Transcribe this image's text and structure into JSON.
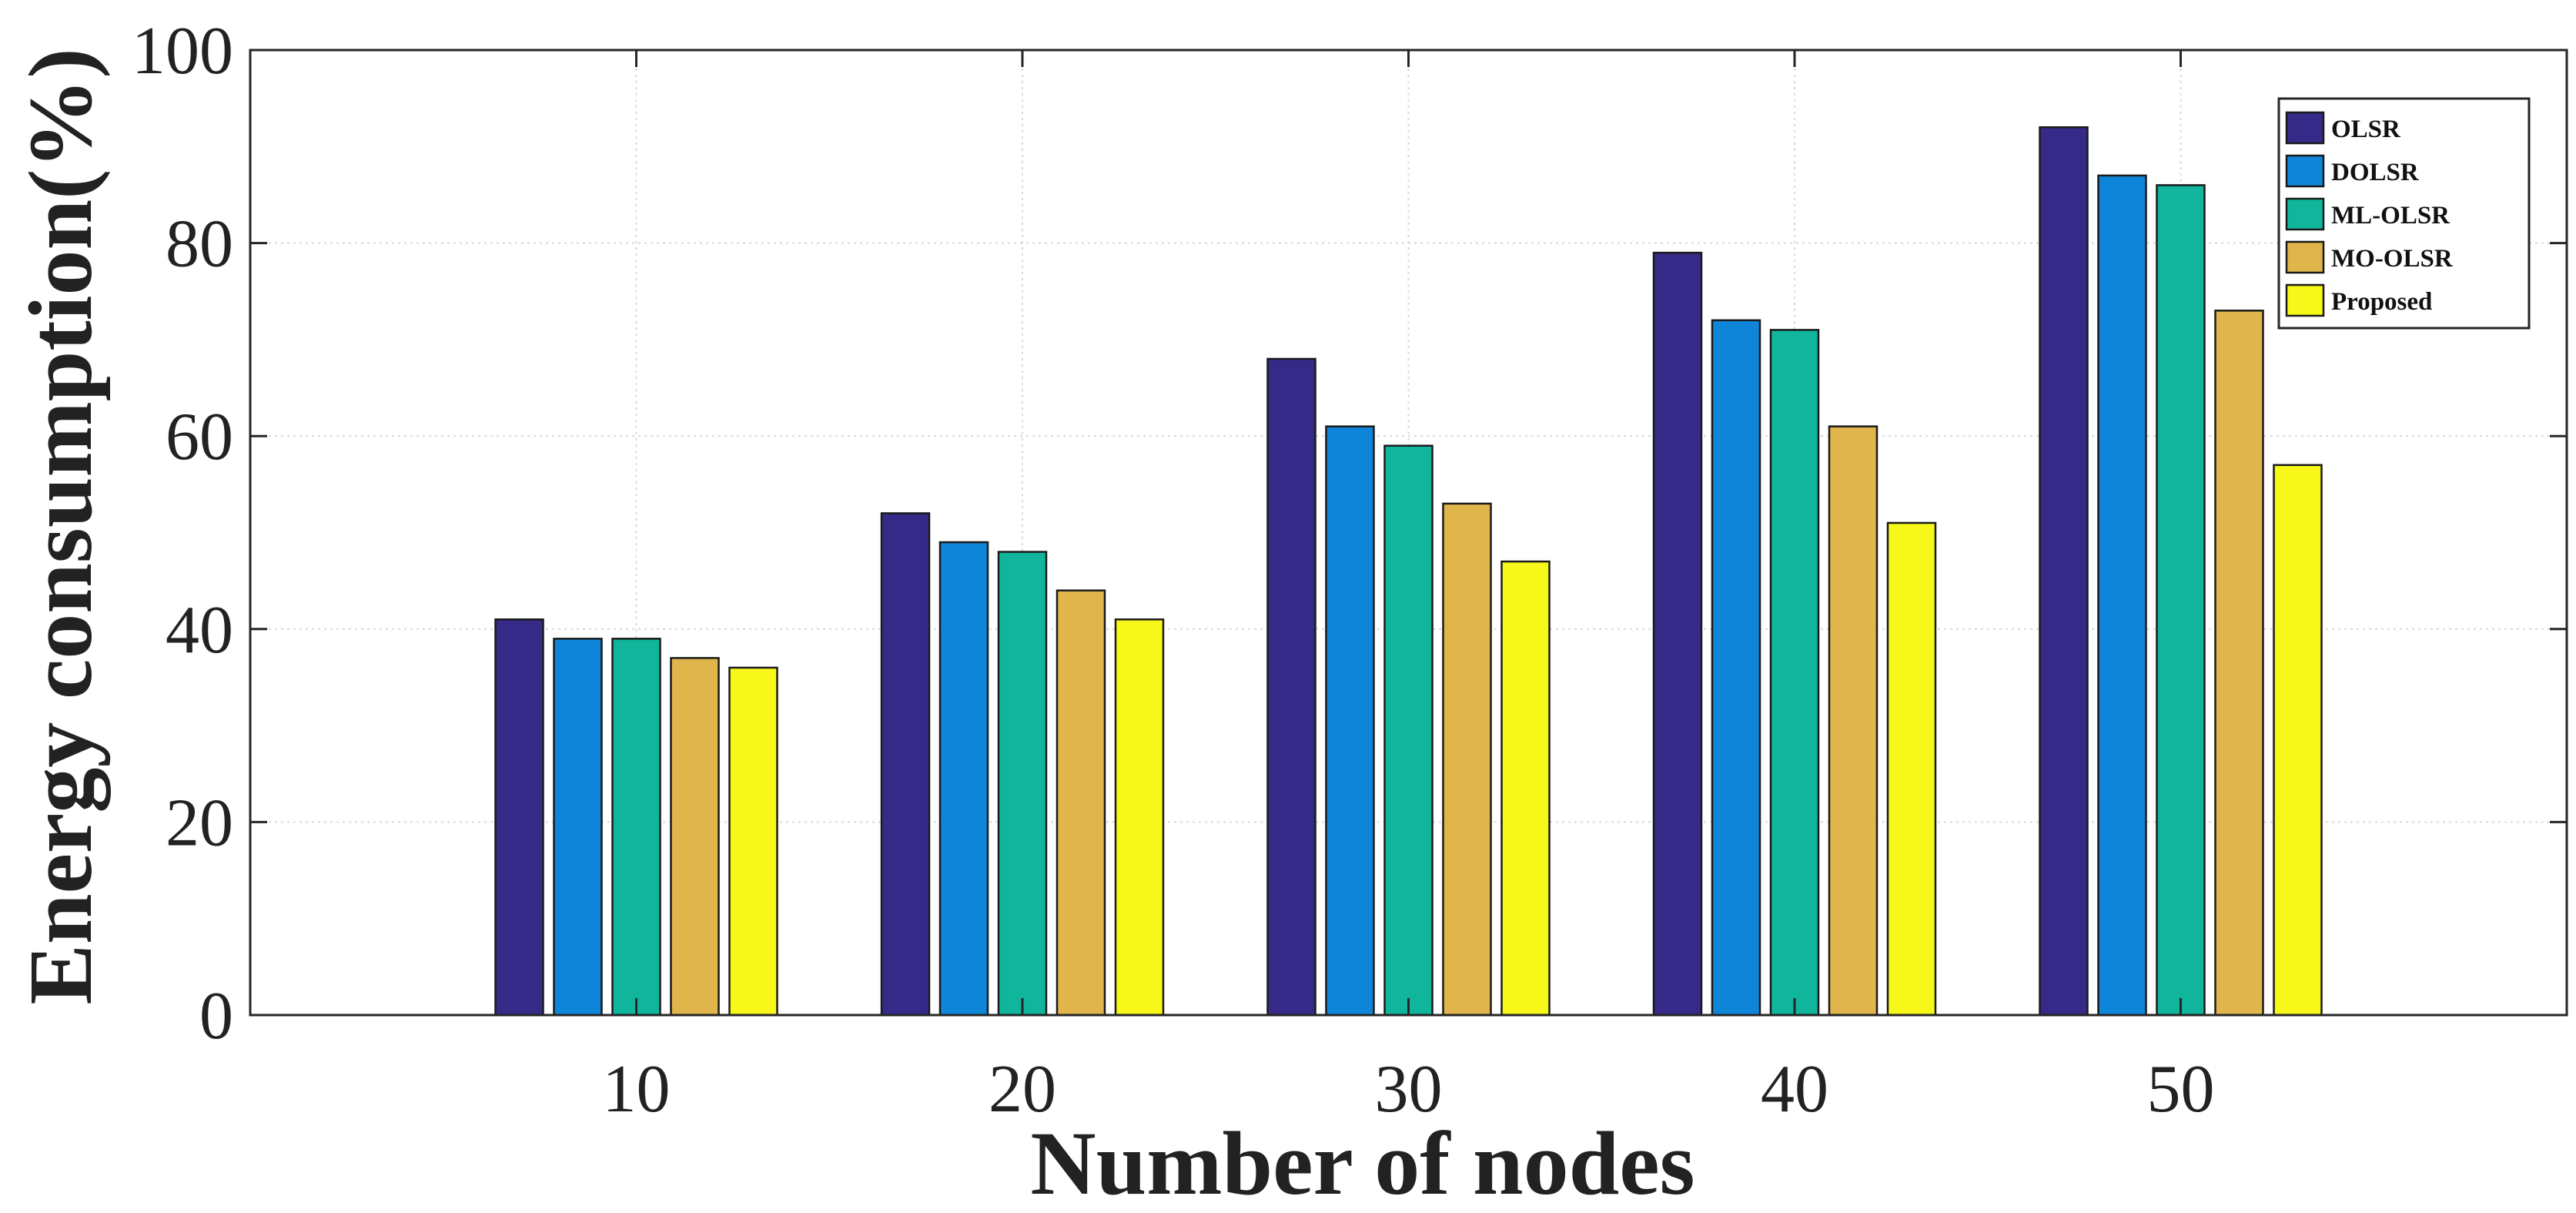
{
  "chart_data": {
    "type": "bar",
    "title": "",
    "xlabel": "Number of nodes",
    "ylabel": "Energy consumption(%)",
    "ylim": [
      0,
      100
    ],
    "yticks": [
      "0",
      "20",
      "40",
      "60",
      "80",
      "100"
    ],
    "grid": true,
    "legend_position": "top-right",
    "categories": [
      "10",
      "20",
      "30",
      "40",
      "50"
    ],
    "series": [
      {
        "name": "OLSR",
        "color": "#352a87",
        "values": [
          41,
          52,
          68,
          79,
          92
        ]
      },
      {
        "name": "DOLSR",
        "color": "#0f85d9",
        "values": [
          39,
          49,
          61,
          72,
          87
        ]
      },
      {
        "name": "ML-OLSR",
        "color": "#11b59c",
        "values": [
          39,
          48,
          59,
          71,
          86
        ]
      },
      {
        "name": "MO-OLSR",
        "color": "#e0b54c",
        "values": [
          37,
          44,
          53,
          61,
          73
        ]
      },
      {
        "name": "Proposed",
        "color": "#f7f71a",
        "values": [
          36,
          41,
          47,
          51,
          57
        ]
      }
    ]
  }
}
